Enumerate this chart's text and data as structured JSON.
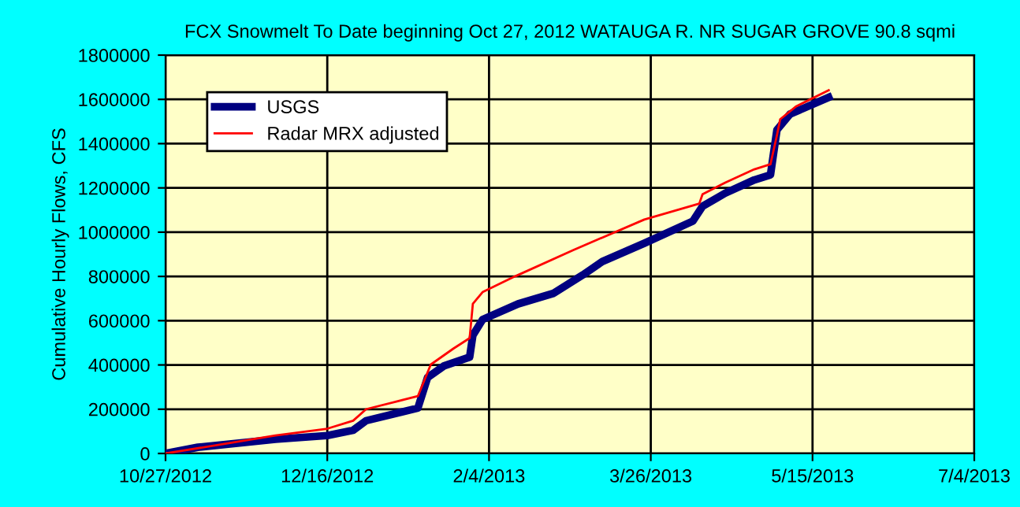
{
  "chart_data": {
    "type": "line",
    "title": "FCX Snowmelt To Date beginning Oct 27, 2012 WATAUGA R. NR SUGAR GROVE 90.8 sqmi",
    "ylabel": "Cumulative Hourly Flows, CFS",
    "series": [
      {
        "name": "USGS",
        "color": "#000080",
        "x": [
          "2012-10-27",
          "2012-11-06",
          "2012-11-30",
          "2012-12-16",
          "2012-12-24",
          "2012-12-28",
          "2013-01-13",
          "2013-01-16",
          "2013-01-21",
          "2013-01-29",
          "2013-01-30",
          "2013-02-02",
          "2013-02-13",
          "2013-02-24",
          "2013-03-05",
          "2013-03-11",
          "2013-03-24",
          "2013-04-08",
          "2013-04-11",
          "2013-04-18",
          "2013-04-27",
          "2013-05-02",
          "2013-05-04",
          "2013-05-08",
          "2013-05-20"
        ],
        "values": [
          0,
          28000,
          64000,
          81000,
          105000,
          148000,
          205000,
          343000,
          395000,
          435000,
          534000,
          605000,
          676000,
          724000,
          807000,
          867000,
          950000,
          1050000,
          1117000,
          1176000,
          1236000,
          1259000,
          1462000,
          1533000,
          1609000
        ]
      },
      {
        "name": "Radar MRX adjusted",
        "color": "#ff0000",
        "x": [
          "2012-10-27",
          "2012-11-30",
          "2012-12-16",
          "2012-12-24",
          "2012-12-28",
          "2013-01-13",
          "2013-01-17",
          "2013-01-24",
          "2013-01-29",
          "2013-01-30",
          "2013-02-02",
          "2013-02-12",
          "2013-03-02",
          "2013-03-24",
          "2013-04-10",
          "2013-04-11",
          "2013-04-18",
          "2013-04-27",
          "2013-05-02",
          "2013-05-04",
          "2013-05-05",
          "2013-05-10",
          "2013-05-20"
        ],
        "values": [
          0,
          81000,
          112000,
          148000,
          200000,
          259000,
          402000,
          474000,
          521000,
          676000,
          729000,
          800000,
          919000,
          1057000,
          1129000,
          1171000,
          1224000,
          1284000,
          1307000,
          1438000,
          1510000,
          1569000,
          1641000
        ]
      }
    ],
    "xlim": [
      "2012-10-27",
      "2013-07-04"
    ],
    "xticks": [
      {
        "value": "2012-10-27",
        "label": "10/27/2012"
      },
      {
        "value": "2012-12-16",
        "label": "12/16/2012"
      },
      {
        "value": "2013-02-04",
        "label": "2/4/2013"
      },
      {
        "value": "2013-03-26",
        "label": "3/26/2013"
      },
      {
        "value": "2013-05-15",
        "label": "5/15/2013"
      },
      {
        "value": "2013-07-04",
        "label": "7/4/2013"
      }
    ],
    "ylim": [
      0,
      1800000
    ],
    "yticks": [
      0,
      200000,
      400000,
      600000,
      800000,
      1000000,
      1200000,
      1400000,
      1600000,
      1800000
    ],
    "grid": true,
    "legend": "top left",
    "line_style": "solid"
  }
}
